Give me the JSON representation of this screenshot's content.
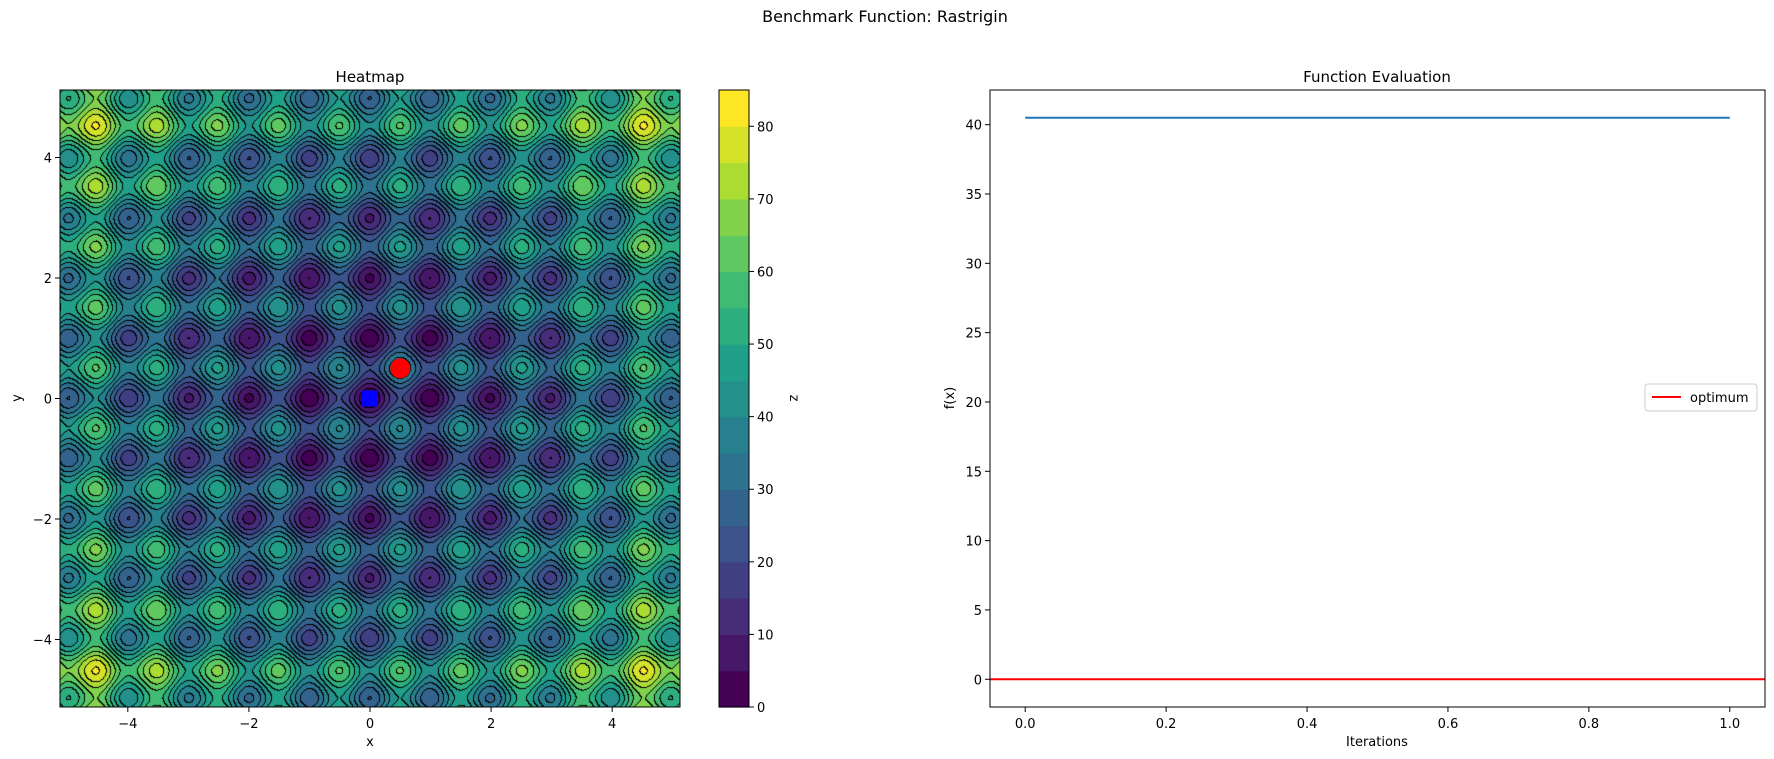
{
  "figure": {
    "suptitle": "Benchmark Function: Rastrigin"
  },
  "chart_data": [
    {
      "type": "heatmap",
      "title": "Heatmap",
      "xlabel": "x",
      "ylabel": "y",
      "xlim": [
        -5.12,
        5.12
      ],
      "ylim": [
        -5.12,
        5.12
      ],
      "x_ticks": [
        -4,
        -2,
        0,
        2,
        4
      ],
      "y_ticks": [
        -4,
        -2,
        0,
        2,
        4
      ],
      "function": "rastrigin",
      "colormap": "viridis",
      "contour_lines": true,
      "colorbar": {
        "label": "z",
        "range": [
          0,
          85
        ],
        "levels": [
          0,
          5,
          10,
          15,
          20,
          25,
          30,
          35,
          40,
          45,
          50,
          55,
          60,
          65,
          70,
          75,
          80,
          85
        ],
        "ticks": [
          0,
          10,
          20,
          30,
          40,
          50,
          60,
          70,
          80
        ]
      },
      "markers": [
        {
          "x": 0.5,
          "y": 0.5,
          "shape": "circle",
          "color": "#ff0000"
        },
        {
          "x": 0.0,
          "y": 0.0,
          "shape": "square",
          "color": "#0000ff"
        }
      ]
    },
    {
      "type": "line",
      "title": "Function Evaluation",
      "xlabel": "Iterations",
      "ylabel": "f(x)",
      "xlim": [
        -0.05,
        1.05
      ],
      "ylim": [
        -2.0,
        42.5
      ],
      "x_ticks": [
        0.0,
        0.2,
        0.4,
        0.6,
        0.8,
        1.0
      ],
      "y_ticks": [
        0,
        5,
        10,
        15,
        20,
        25,
        30,
        35,
        40
      ],
      "grid": false,
      "legend_position": "center-right",
      "series": [
        {
          "x": [
            0.0,
            1.0
          ],
          "y": [
            40.5,
            40.5
          ],
          "color": "#1f77b4"
        }
      ],
      "hlines": [
        {
          "name": "optimum",
          "y": 0,
          "color": "#ff0000"
        }
      ]
    }
  ]
}
